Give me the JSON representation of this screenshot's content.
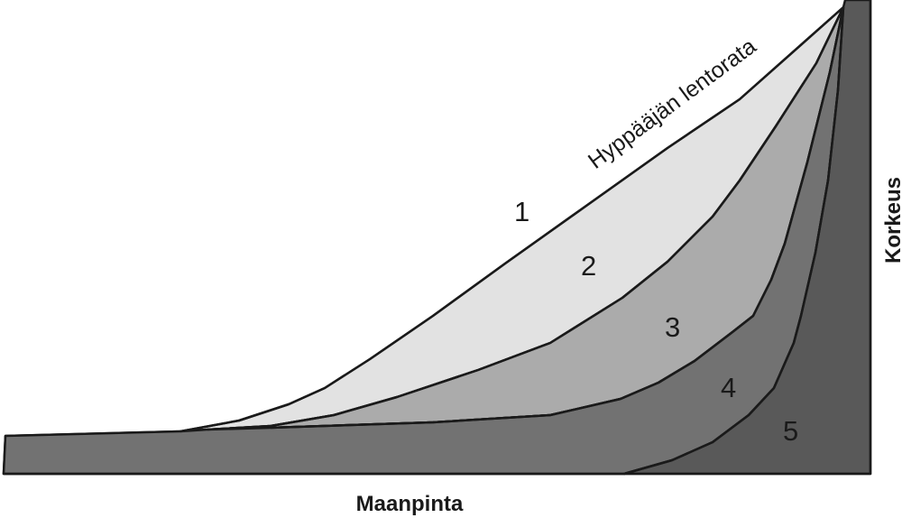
{
  "diagram": {
    "trajectory_label": "Hyppääjän lentorata",
    "x_axis_label": "Maanpinta",
    "y_axis_label": "Korkeus",
    "regions": [
      {
        "label": "1",
        "color": "#e2e2e2"
      },
      {
        "label": "2",
        "color": "#ababab"
      },
      {
        "label": "3",
        "color": "#8c8c8c"
      },
      {
        "label": "4",
        "color": "#727272"
      },
      {
        "label": "5",
        "color": "#595959"
      }
    ]
  }
}
